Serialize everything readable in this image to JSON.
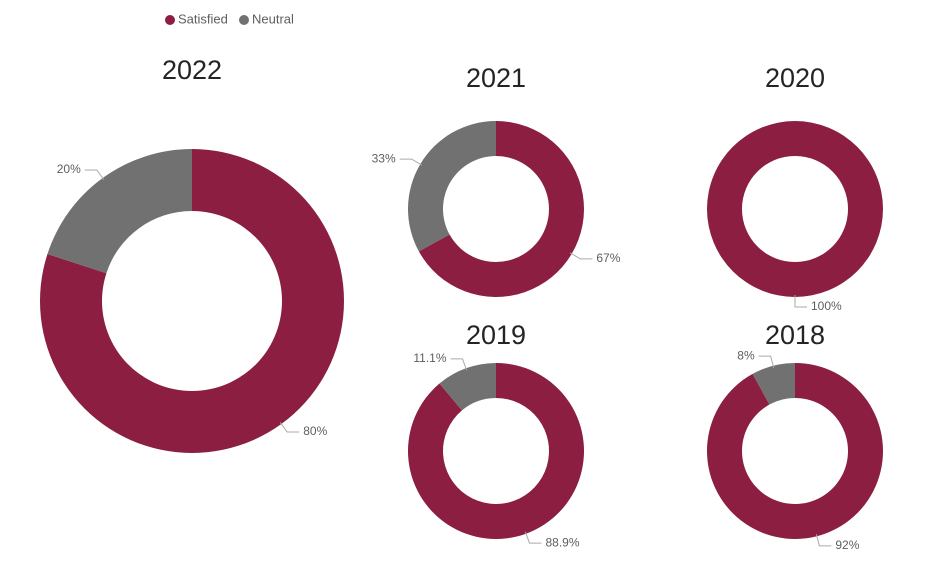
{
  "legend": {
    "items": [
      {
        "name": "Satisfied",
        "color": "#8b1e41"
      },
      {
        "name": "Neutral",
        "color": "#717171"
      }
    ]
  },
  "chart_data": [
    {
      "type": "donut",
      "title": "2022",
      "values": [
        80,
        20
      ],
      "value_labels": [
        "80%",
        "20%"
      ]
    },
    {
      "type": "donut",
      "title": "2021",
      "values": [
        67,
        33
      ],
      "value_labels": [
        "67%",
        "33%"
      ]
    },
    {
      "type": "donut",
      "title": "2020",
      "values": [
        100
      ],
      "value_labels": [
        "100%"
      ]
    },
    {
      "type": "donut",
      "title": "2019",
      "values": [
        88.9,
        11.1
      ],
      "value_labels": [
        "88.9%",
        "11.1%"
      ]
    },
    {
      "type": "donut",
      "title": "2018",
      "values": [
        92,
        8
      ],
      "value_labels": [
        "92%",
        "8%"
      ]
    }
  ]
}
